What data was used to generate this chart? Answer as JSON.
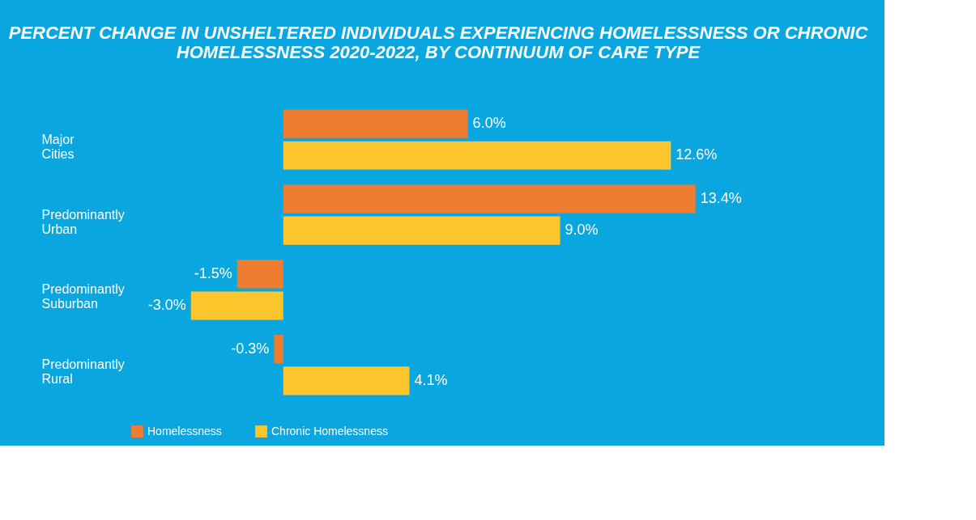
{
  "chart_data": {
    "type": "bar",
    "orientation": "horizontal",
    "title": "PERCENT CHANGE IN UNSHELTERED INDIVIDUALS EXPERIENCING HOMELESSNESS OR CHRONIC HOMELESSNESS 2020-2022, BY CONTINUUM OF CARE TYPE",
    "categories": [
      "Major Cities",
      "Predominantly Urban",
      "Predominantly Suburban",
      "Predominantly Rural"
    ],
    "series": [
      {
        "name": "Homelessness",
        "color": "#ee7d31",
        "values": [
          6.0,
          13.4,
          -1.5,
          -0.3
        ],
        "value_labels": [
          "6.0%",
          "13.4%",
          "-1.5%",
          "-0.3%"
        ]
      },
      {
        "name": "Chronic Homelessness",
        "color": "#fdc52c",
        "values": [
          12.6,
          9.0,
          -3.0,
          4.1
        ],
        "value_labels": [
          "12.6%",
          "9.0%",
          "-3.0%",
          "4.1%"
        ]
      }
    ],
    "legend": "bottom",
    "tick_labels": "y"
  }
}
